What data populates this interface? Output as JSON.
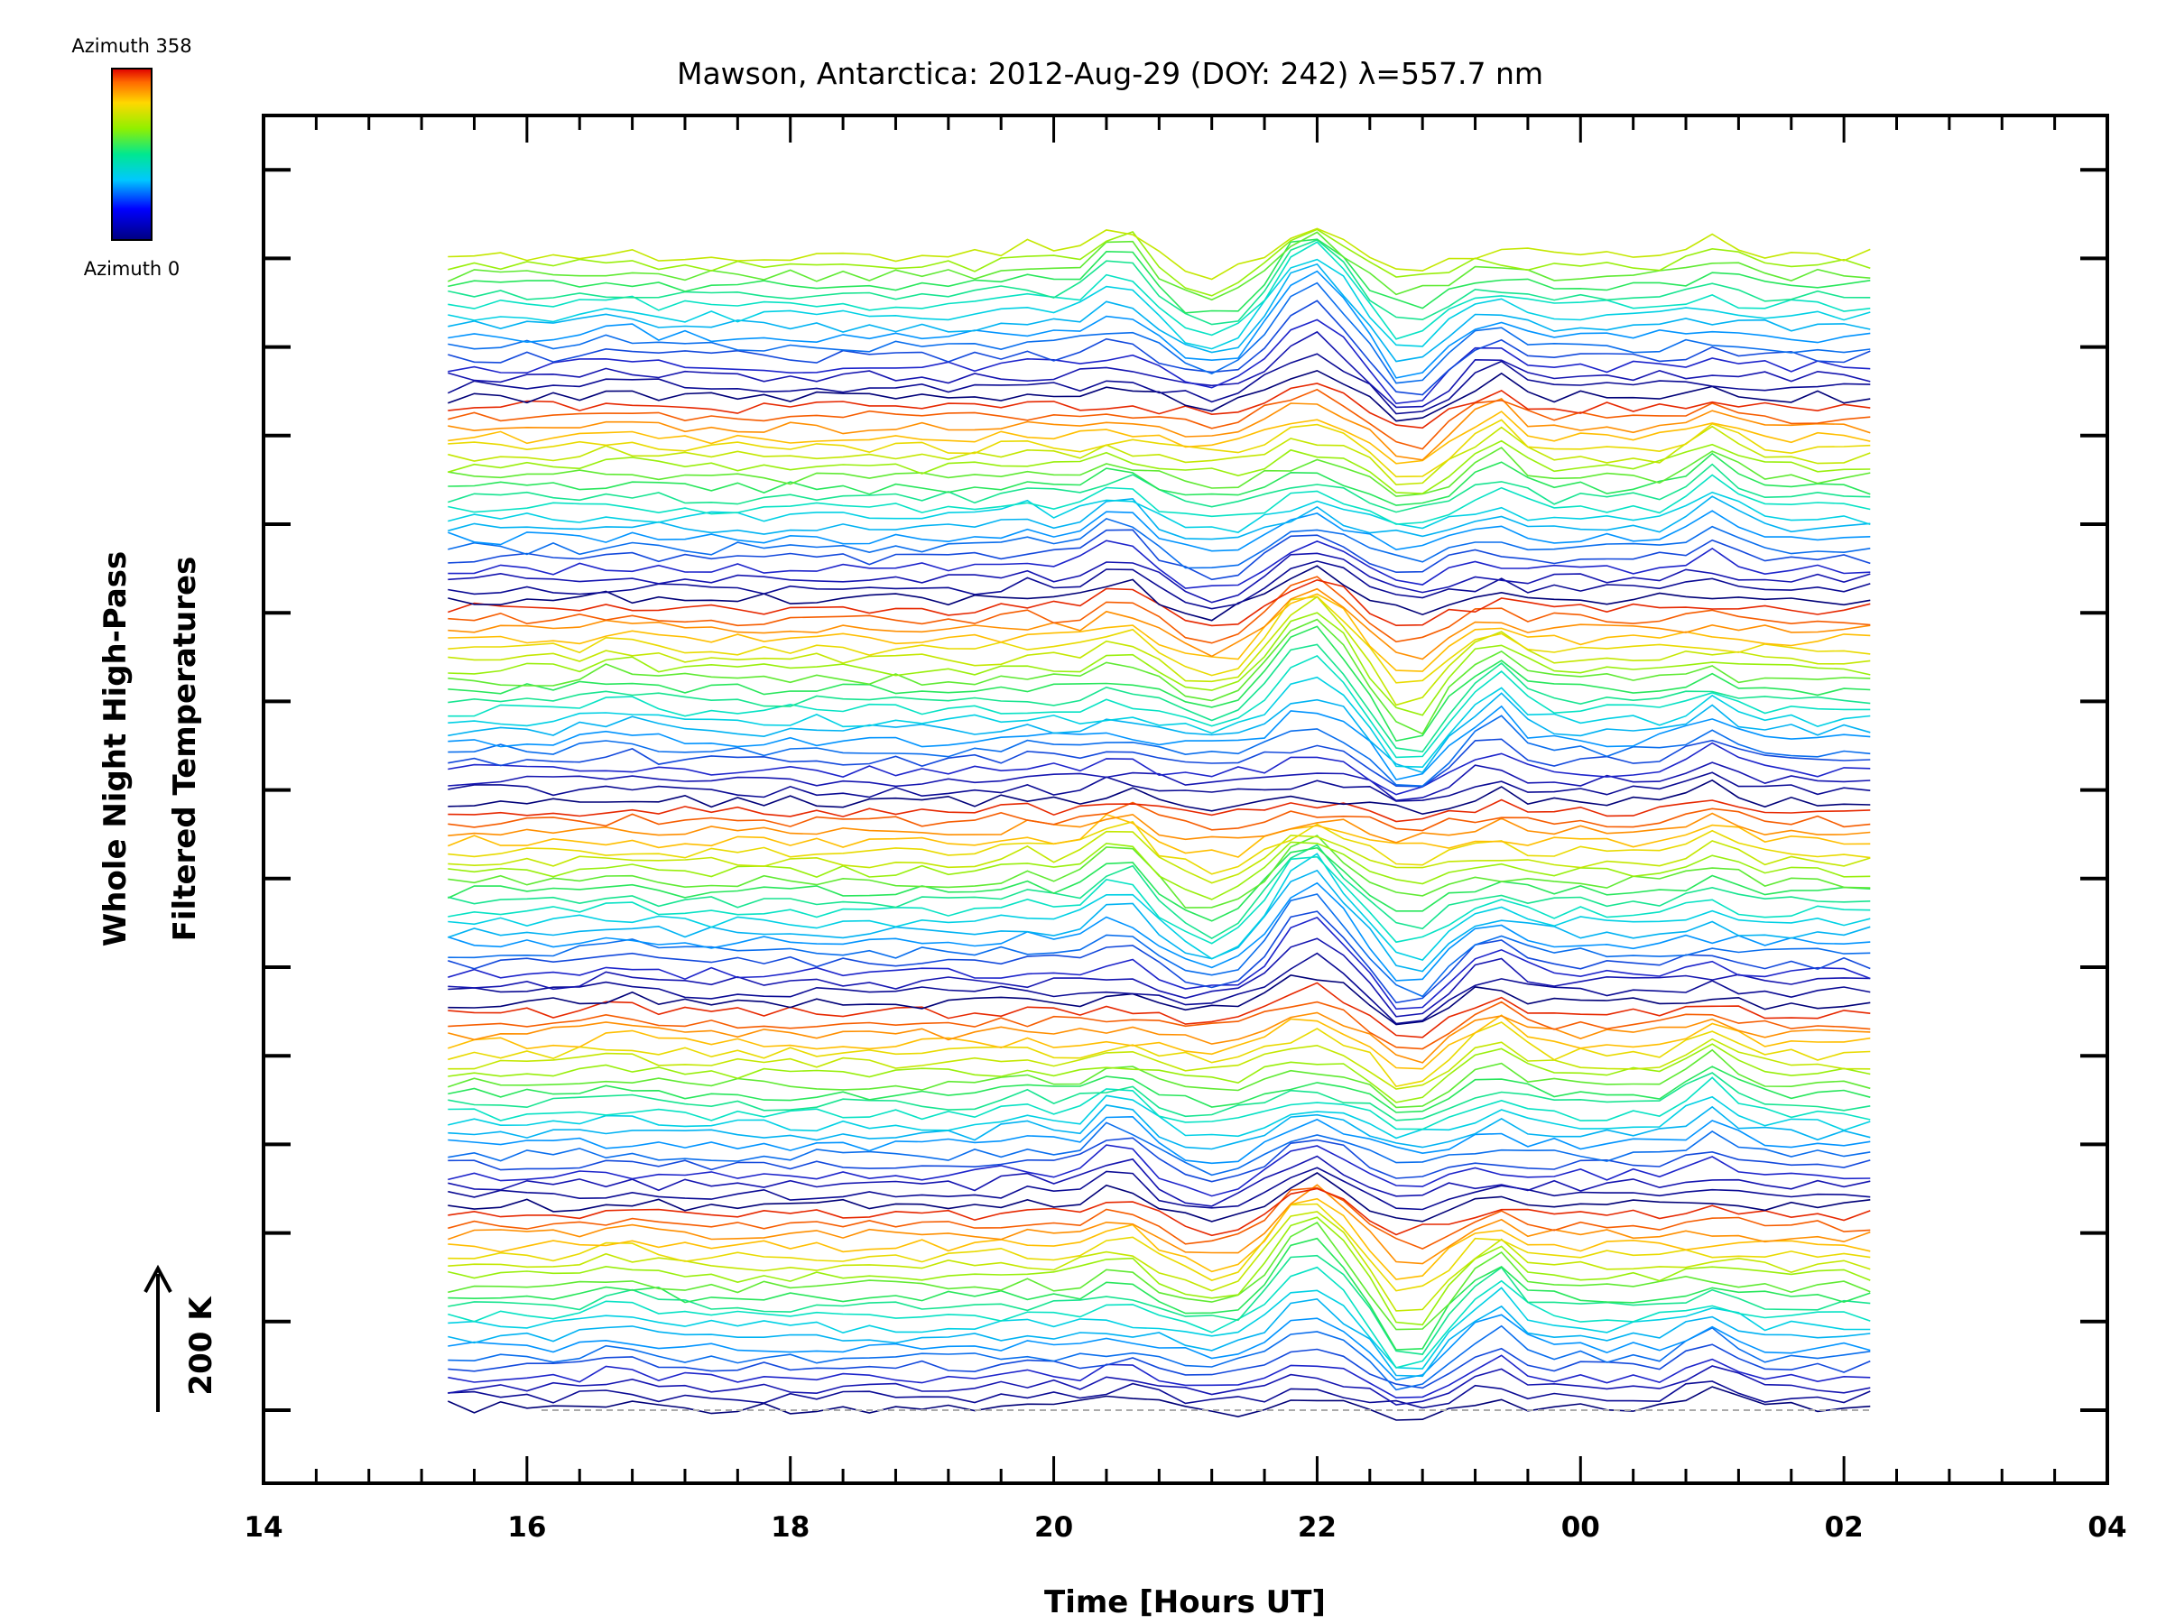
{
  "chart_data": {
    "type": "line",
    "title": "Mawson, Antarctica: 2012-Aug-29 (DOY: 242) λ=557.7 nm",
    "xlabel": "Time [Hours UT]",
    "ylabel_line1": "Whole Night High-Pass",
    "ylabel_line2": "Filtered Temperatures",
    "scale_label": "200 K",
    "x_ticks": [
      "14",
      "16",
      "18",
      "20",
      "22",
      "00",
      "02",
      "04"
    ],
    "xlim": [
      14,
      28
    ],
    "data_x_range": [
      15.4,
      26.2
    ],
    "n_traces": 115,
    "colorbar": {
      "top_label": "Azimuth 358",
      "bottom_label": "Azimuth 0",
      "min": 0,
      "max": 358
    },
    "colormap": "rainbow",
    "baseline": "dashed",
    "grid": false
  }
}
